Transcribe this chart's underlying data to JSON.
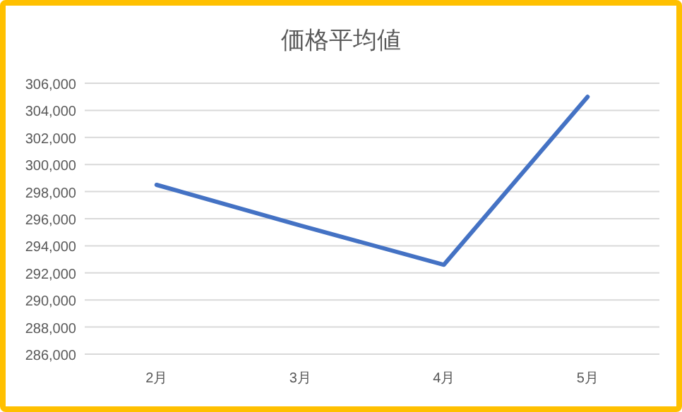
{
  "chart_data": {
    "type": "line",
    "title": "価格平均値",
    "categories": [
      "2月",
      "3月",
      "4月",
      "5月"
    ],
    "series": [
      {
        "color": "#4472c4",
        "values": [
          298500,
          295500,
          292600,
          305000
        ]
      }
    ],
    "ylim": [
      286000,
      306000
    ],
    "yticks": [
      {
        "value": 286000,
        "label": "286,000"
      },
      {
        "value": 288000,
        "label": "288,000"
      },
      {
        "value": 290000,
        "label": "290,000"
      },
      {
        "value": 292000,
        "label": "292,000"
      },
      {
        "value": 294000,
        "label": "294,000"
      },
      {
        "value": 296000,
        "label": "296,000"
      },
      {
        "value": 298000,
        "label": "298,000"
      },
      {
        "value": 300000,
        "label": "300,000"
      },
      {
        "value": 302000,
        "label": "302,000"
      },
      {
        "value": 304000,
        "label": "304,000"
      },
      {
        "value": 306000,
        "label": "306,000"
      }
    ],
    "grid": "y",
    "marker": "none",
    "line_style": "solid"
  }
}
